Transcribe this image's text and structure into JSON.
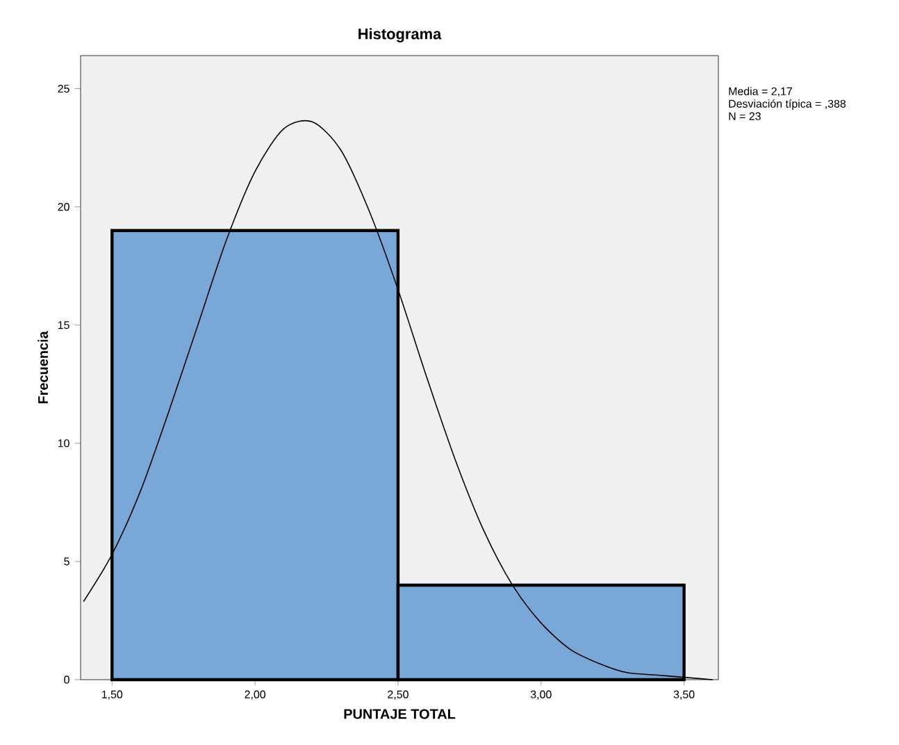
{
  "chart_data": {
    "type": "histogram",
    "title": "Histograma",
    "xlabel": "PUNTAJE TOTAL",
    "ylabel": "Frecuencia",
    "bins": [
      1.5,
      2.5,
      3.5
    ],
    "values": [
      19,
      4
    ],
    "color": "#79a8d8",
    "series": [
      {
        "type": "line",
        "color": "#000000",
        "x": [
          1.4,
          1.5,
          1.6,
          1.7,
          1.8,
          1.9,
          2.0,
          2.1,
          2.2,
          2.3,
          2.4,
          2.5,
          2.6,
          2.7,
          2.8,
          2.9,
          3.0,
          3.1,
          3.2,
          3.3,
          3.4,
          3.5,
          3.6
        ],
        "values": [
          3.3,
          5.3,
          8.0,
          11.4,
          15.0,
          18.6,
          21.5,
          23.3,
          23.6,
          22.4,
          19.8,
          16.5,
          12.8,
          9.3,
          6.3,
          4.0,
          2.4,
          1.3,
          0.7,
          0.3,
          0.2,
          0.1,
          0.0
        ]
      }
    ],
    "xlim": [
      1.39,
      3.62
    ],
    "ylim": [
      0,
      26.4
    ],
    "xticks": [
      {
        "value": 1.5,
        "label": "1,50"
      },
      {
        "value": 2.0,
        "label": "2,00"
      },
      {
        "value": 2.5,
        "label": "2,50"
      },
      {
        "value": 3.0,
        "label": "3,00"
      },
      {
        "value": 3.5,
        "label": "3,50"
      }
    ],
    "yticks": [
      0,
      5,
      10,
      15,
      20,
      25
    ],
    "annotations": [
      "Media = 2,17",
      "Desviación típica = ,388",
      "N = 23"
    ]
  }
}
